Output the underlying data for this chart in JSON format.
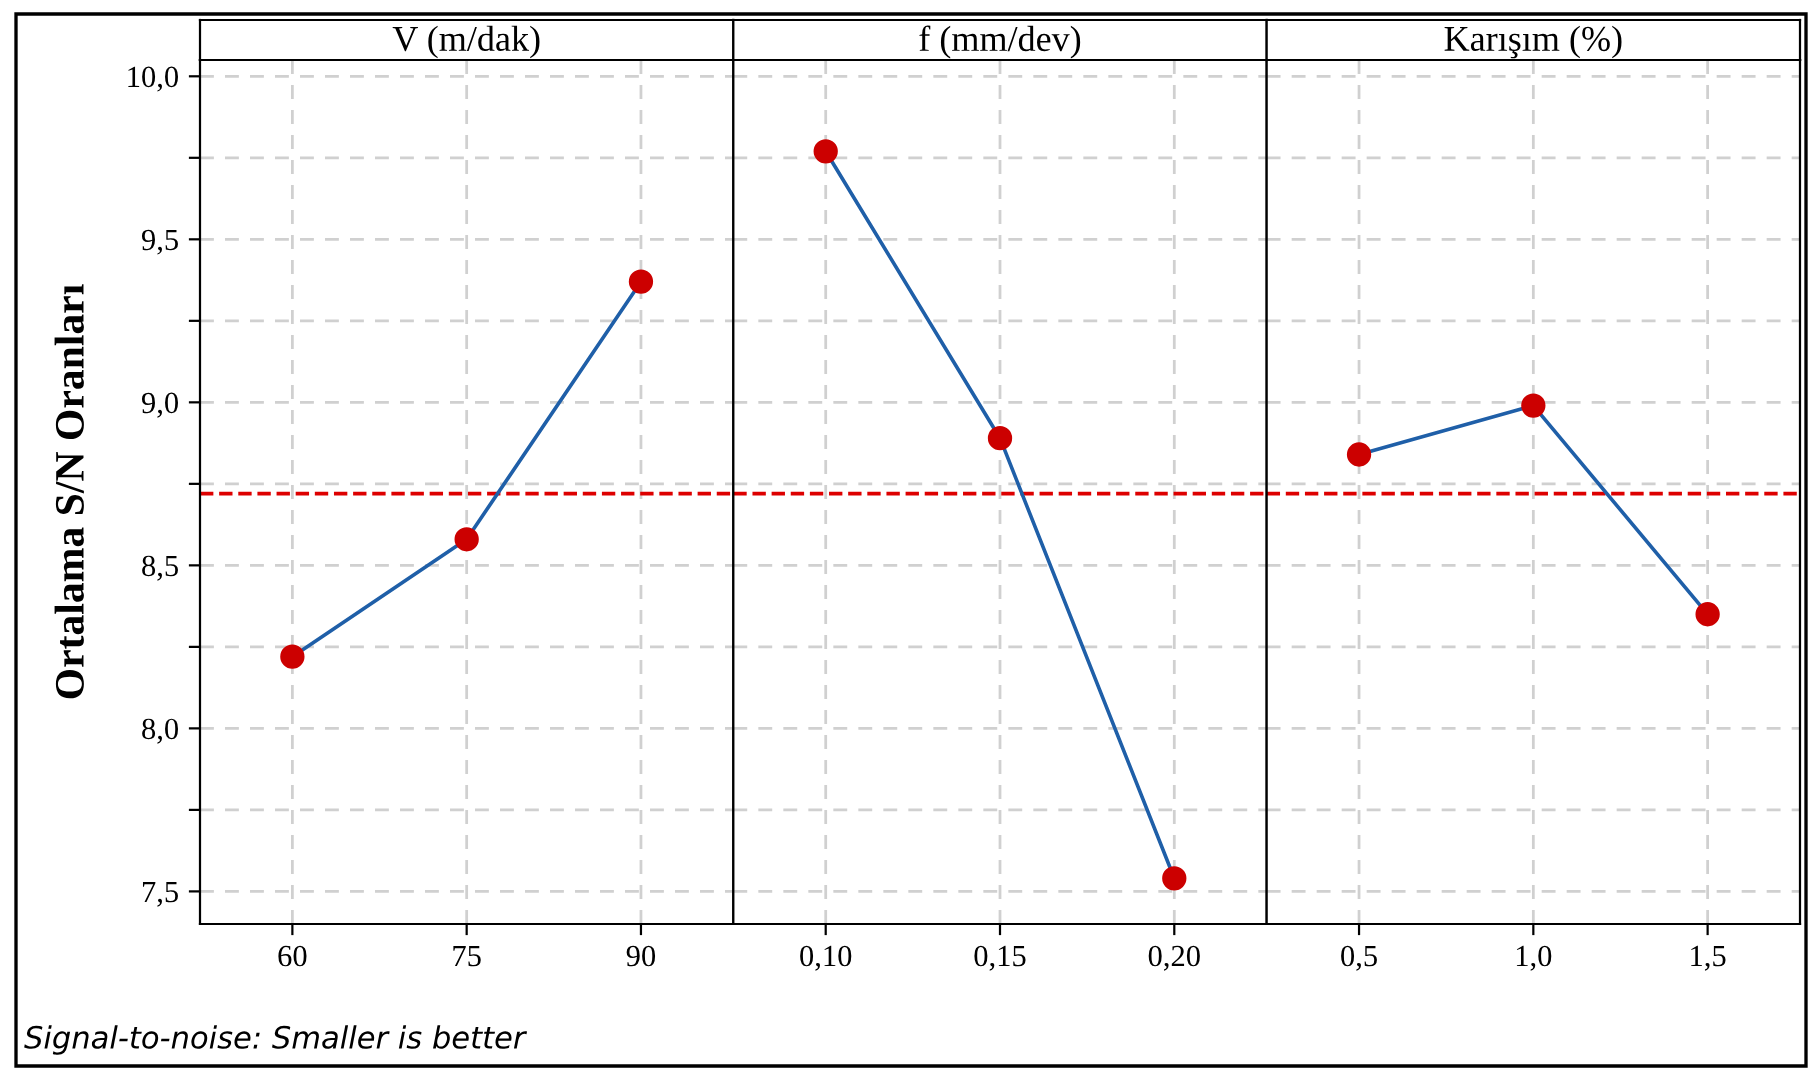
{
  "chart_data": [
    {
      "type": "line",
      "title": "V (m/dak)",
      "ylabel": "Ortalama S/N Oranları",
      "categories": [
        "60",
        "75",
        "90"
      ],
      "series": [
        {
          "color": "#1f5fa8",
          "colors": [
            "#cc0000",
            "#cc0000",
            "#cc0000"
          ],
          "values": [
            8.22,
            8.58,
            9.37
          ]
        }
      ],
      "ylim": [
        7.4,
        10.05
      ],
      "yticks": [
        {
          "value": 7.5,
          "label": "7,5"
        },
        {
          "value": 7.75,
          "label": null
        },
        {
          "value": 8.0,
          "label": "8,0"
        },
        {
          "value": 8.25,
          "label": null
        },
        {
          "value": 8.5,
          "label": "8,5"
        },
        {
          "value": 8.75,
          "label": null
        },
        {
          "value": 9.0,
          "label": "9,0"
        },
        {
          "value": 9.25,
          "label": null
        },
        {
          "value": 9.5,
          "label": "9,5"
        },
        {
          "value": 9.75,
          "label": null
        },
        {
          "value": 10.0,
          "label": "10,0"
        }
      ],
      "ref_lines": [
        {
          "axis": "y",
          "value": 8.72,
          "color": "#dd0000",
          "line_style": "dashed"
        }
      ],
      "annotations": [
        "Signal-to-noise: Smaller is better"
      ],
      "grid": true,
      "marker": "circle",
      "line_style": "solid"
    },
    {
      "type": "line",
      "title": "f (mm/dev)",
      "categories": [
        "0,10",
        "0,15",
        "0,20"
      ],
      "series": [
        {
          "color": "#1f5fa8",
          "colors": [
            "#cc0000",
            "#cc0000",
            "#cc0000"
          ],
          "values": [
            9.77,
            8.89,
            7.54
          ]
        }
      ],
      "ylim": [
        7.4,
        10.05
      ],
      "yticks": [
        {
          "value": 7.5,
          "label": null
        },
        {
          "value": 7.75,
          "label": null
        },
        {
          "value": 8.0,
          "label": null
        },
        {
          "value": 8.25,
          "label": null
        },
        {
          "value": 8.5,
          "label": null
        },
        {
          "value": 8.75,
          "label": null
        },
        {
          "value": 9.0,
          "label": null
        },
        {
          "value": 9.25,
          "label": null
        },
        {
          "value": 9.5,
          "label": null
        },
        {
          "value": 9.75,
          "label": null
        },
        {
          "value": 10.0,
          "label": null
        }
      ],
      "ref_lines": [
        {
          "axis": "y",
          "value": 8.72,
          "color": "#dd0000",
          "line_style": "dashed"
        }
      ],
      "grid": true,
      "marker": "circle",
      "line_style": "solid",
      "tick_labels": "x"
    },
    {
      "type": "line",
      "title": "Karışım (%)",
      "categories": [
        "0,5",
        "1,0",
        "1,5"
      ],
      "series": [
        {
          "color": "#1f5fa8",
          "colors": [
            "#cc0000",
            "#cc0000",
            "#cc0000"
          ],
          "values": [
            8.84,
            8.99,
            8.35
          ]
        }
      ],
      "ylim": [
        7.4,
        10.05
      ],
      "yticks": [
        {
          "value": 7.5,
          "label": null
        },
        {
          "value": 7.75,
          "label": null
        },
        {
          "value": 8.0,
          "label": null
        },
        {
          "value": 8.25,
          "label": null
        },
        {
          "value": 8.5,
          "label": null
        },
        {
          "value": 8.75,
          "label": null
        },
        {
          "value": 9.0,
          "label": null
        },
        {
          "value": 9.25,
          "label": null
        },
        {
          "value": 9.5,
          "label": null
        },
        {
          "value": 9.75,
          "label": null
        },
        {
          "value": 10.0,
          "label": null
        }
      ],
      "ref_lines": [
        {
          "axis": "y",
          "value": 8.72,
          "color": "#dd0000",
          "line_style": "dashed"
        }
      ],
      "grid": true,
      "marker": "circle",
      "line_style": "solid",
      "tick_labels": "x"
    }
  ]
}
